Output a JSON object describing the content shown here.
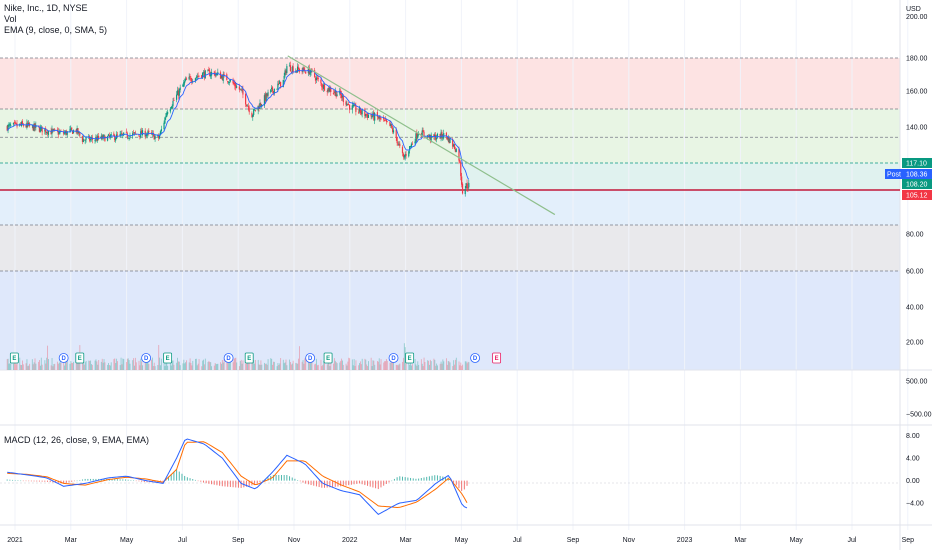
{
  "header": {
    "symbol_line": "Nike, Inc., 1D, NYSE",
    "vol_label": "Vol",
    "ema_label": "EMA (9, close, 0, SMA, 5)",
    "macd_label": "MACD (12, 26, close, 9, EMA, EMA)"
  },
  "axis": {
    "currency": "USD",
    "price_ticks": [
      "200.00",
      "180.00",
      "160.00",
      "140.00",
      "80.00",
      "60.00",
      "40.00",
      "20.00"
    ],
    "volume_ticks": [
      "500.00",
      "−500.00"
    ],
    "macd_ticks": [
      "8.00",
      "4.00",
      "0.00",
      "−4.00"
    ],
    "time_ticks": [
      "2021",
      "Mar",
      "May",
      "Jul",
      "Sep",
      "Nov",
      "2022",
      "Mar",
      "May",
      "Jul",
      "Sep",
      "Nov",
      "2023",
      "Mar",
      "May",
      "Jul",
      "Sep"
    ]
  },
  "price_tags": [
    {
      "label": "117.10",
      "color": "#089981"
    },
    {
      "label": "108.36",
      "color": "#2962ff",
      "prefix": "Post"
    },
    {
      "label": "108.20",
      "color": "#089981"
    },
    {
      "label": "105.12",
      "color": "#f23645"
    }
  ],
  "zones": [
    {
      "from": 150,
      "to": 180,
      "color": "#fde3e3"
    },
    {
      "from": 117.1,
      "to": 150,
      "color": "#e8f5e4"
    },
    {
      "from": 105.12,
      "to": 117.1,
      "color": "#e0f2ef"
    },
    {
      "from": 85,
      "to": 105.12,
      "color": "#e3effb"
    },
    {
      "from": 60,
      "to": 85,
      "color": "#e9e9ec"
    },
    {
      "from": 5,
      "to": 60,
      "color": "#dfe8fb"
    }
  ],
  "levels": [
    {
      "value": 180,
      "color": "#787b86"
    },
    {
      "value": 150,
      "color": "#787b86"
    },
    {
      "value": 133.5,
      "color": "#787b86"
    },
    {
      "value": 117.1,
      "color": "#089981"
    },
    {
      "value": 105.12,
      "color": "#c2183a"
    },
    {
      "value": 85,
      "color": "#787b86"
    },
    {
      "value": 60,
      "color": "#787b86"
    }
  ],
  "trendline": {
    "from": {
      "date": "2021-11-06",
      "price": 181
    },
    "to": {
      "date": "2022-08-31",
      "price": 91
    },
    "color": "#8fbf8c"
  },
  "events": [
    {
      "type": "E",
      "date": "2021-01-05"
    },
    {
      "type": "D",
      "date": "2021-03-01"
    },
    {
      "type": "E",
      "date": "2021-03-19"
    },
    {
      "type": "D",
      "date": "2021-06-01"
    },
    {
      "type": "E",
      "date": "2021-06-25"
    },
    {
      "type": "D",
      "date": "2021-09-01"
    },
    {
      "type": "E",
      "date": "2021-09-24"
    },
    {
      "type": "D",
      "date": "2021-12-01"
    },
    {
      "type": "E",
      "date": "2021-12-21"
    },
    {
      "type": "D",
      "date": "2022-03-04"
    },
    {
      "type": "E",
      "date": "2022-03-22"
    },
    {
      "type": "D",
      "date": "2022-06-03"
    },
    {
      "type": "E-future",
      "date": "2022-06-27"
    }
  ],
  "chart_data": {
    "type": "candlestick",
    "title": "Nike, Inc., 1D, NYSE",
    "currency": "USD",
    "ylim": [
      0,
      205
    ],
    "x_range": [
      "2020-12-20",
      "2023-09-20"
    ],
    "price_series": {
      "name": "Nike, Inc.",
      "x": [
        "2020-12-28",
        "2021-01-15",
        "2021-02-01",
        "2021-02-15",
        "2021-03-01",
        "2021-03-15",
        "2021-03-22",
        "2021-04-01",
        "2021-04-15",
        "2021-05-01",
        "2021-05-15",
        "2021-06-01",
        "2021-06-15",
        "2021-06-25",
        "2021-07-01",
        "2021-07-15",
        "2021-08-01",
        "2021-08-15",
        "2021-09-01",
        "2021-09-15",
        "2021-09-27",
        "2021-10-15",
        "2021-11-01",
        "2021-11-05",
        "2021-11-15",
        "2021-12-01",
        "2021-12-15",
        "2022-01-03",
        "2022-01-15",
        "2022-02-01",
        "2022-02-15",
        "2022-03-01",
        "2022-03-07",
        "2022-03-15",
        "2022-04-01",
        "2022-04-15",
        "2022-05-01",
        "2022-05-15",
        "2022-05-20",
        "2022-05-27"
      ],
      "close": [
        140,
        141,
        139,
        137,
        136,
        138,
        132,
        132,
        133,
        134,
        135,
        136,
        133,
        150,
        154,
        166,
        170,
        171,
        167,
        160,
        147,
        158,
        166,
        175,
        173,
        172,
        163,
        158,
        151,
        147,
        145,
        140,
        133,
        120,
        137,
        133,
        135,
        124,
        105,
        108.2
      ]
    },
    "ema": {
      "name": "EMA (9, close, 0, SMA, 5)",
      "color": "#2962ff"
    },
    "levels": [
      180,
      150,
      133.5,
      117.1,
      105.12,
      85,
      60
    ],
    "last_values": {
      "resistance": 117.1,
      "post_market": 108.36,
      "close": 108.2,
      "support": 105.12
    },
    "volume": {
      "name": "Vol",
      "unit": "relative"
    },
    "macd": {
      "name": "MACD (12, 26, close, 9, EMA, EMA)",
      "ylim": [
        -7,
        9
      ],
      "x": [
        "2020-12-28",
        "2021-01-20",
        "2021-02-10",
        "2021-03-01",
        "2021-03-25",
        "2021-04-20",
        "2021-05-10",
        "2021-06-01",
        "2021-06-20",
        "2021-07-05",
        "2021-07-15",
        "2021-08-05",
        "2021-08-25",
        "2021-09-15",
        "2021-10-01",
        "2021-10-20",
        "2021-11-05",
        "2021-11-25",
        "2021-12-15",
        "2022-01-05",
        "2022-01-25",
        "2022-02-15",
        "2022-03-10",
        "2022-03-30",
        "2022-04-20",
        "2022-05-05",
        "2022-05-20",
        "2022-05-27"
      ],
      "macd": [
        1.5,
        1.0,
        0.5,
        -1.0,
        -0.5,
        0.5,
        0.8,
        0.0,
        -0.5,
        4.0,
        7.5,
        6.5,
        4.0,
        -0.5,
        -1.5,
        1.5,
        4.5,
        3.0,
        -0.5,
        -1.8,
        -2.5,
        -6.0,
        -4.0,
        -3.5,
        -0.5,
        1.0,
        -4.5,
        -5.0
      ],
      "signal": [
        1.3,
        1.1,
        0.7,
        -0.5,
        -0.8,
        0.2,
        0.6,
        0.3,
        -0.3,
        2.0,
        6.8,
        6.9,
        5.0,
        0.8,
        -0.8,
        0.5,
        3.5,
        3.5,
        0.8,
        -0.8,
        -2.0,
        -4.5,
        -4.8,
        -3.8,
        -1.5,
        0.5,
        -2.5,
        -4.5
      ],
      "hist": [
        0.2,
        -0.1,
        -0.2,
        -0.5,
        0.3,
        0.3,
        0.2,
        -0.3,
        -0.2,
        2.0,
        0.7,
        -0.4,
        -1.0,
        -1.3,
        -0.7,
        1.0,
        1.0,
        -0.5,
        -1.3,
        -1.0,
        -0.5,
        -1.5,
        0.8,
        0.3,
        1.0,
        0.5,
        -2.0,
        -0.5
      ],
      "macd_color": "#2962ff",
      "signal_color": "#ff6d00"
    },
    "colors": {
      "up": "#089981",
      "down": "#f23645"
    }
  }
}
